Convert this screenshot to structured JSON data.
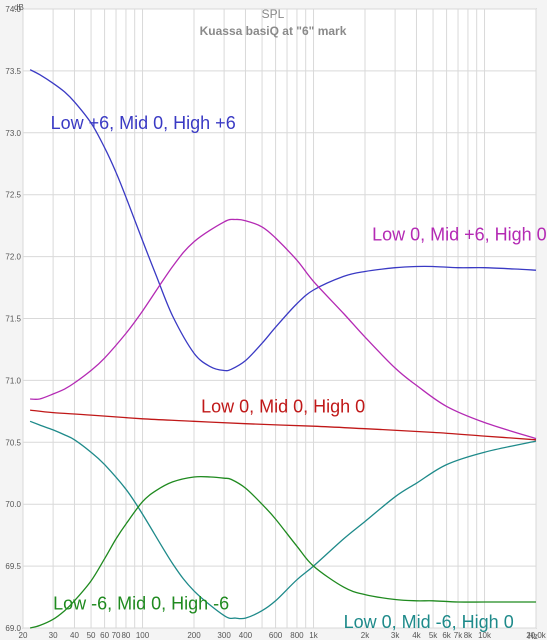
{
  "chart_data": {
    "type": "line",
    "title": "SPL",
    "subtitle": "Kuassa basiQ at \"6\" mark",
    "y_unit": "dB",
    "x_unit": "Hz",
    "x_scale": "log",
    "xlim": [
      20,
      20000
    ],
    "ylim": [
      69.0,
      74.0
    ],
    "grid": true,
    "y_ticks": [
      {
        "value": 69.0,
        "label": "69.0"
      },
      {
        "value": 69.5,
        "label": "69.5"
      },
      {
        "value": 70.0,
        "label": "70.0"
      },
      {
        "value": 70.5,
        "label": "70.5"
      },
      {
        "value": 71.0,
        "label": "71.0"
      },
      {
        "value": 71.5,
        "label": "71.5"
      },
      {
        "value": 72.0,
        "label": "72.0"
      },
      {
        "value": 72.5,
        "label": "72.5"
      },
      {
        "value": 73.0,
        "label": "73.0"
      },
      {
        "value": 73.5,
        "label": "73.5"
      },
      {
        "value": 74.0,
        "label": "74.0"
      }
    ],
    "x_ticks": [
      {
        "value": 20,
        "label": "20"
      },
      {
        "value": 30,
        "label": "30"
      },
      {
        "value": 40,
        "label": "40"
      },
      {
        "value": 50,
        "label": "50"
      },
      {
        "value": 60,
        "label": "60"
      },
      {
        "value": 70,
        "label": "70"
      },
      {
        "value": 80,
        "label": "80"
      },
      {
        "value": 100,
        "label": "100"
      },
      {
        "value": 200,
        "label": "200"
      },
      {
        "value": 300,
        "label": "300"
      },
      {
        "value": 400,
        "label": "400"
      },
      {
        "value": 600,
        "label": "600"
      },
      {
        "value": 800,
        "label": "800"
      },
      {
        "value": 1000,
        "label": "1k"
      },
      {
        "value": 2000,
        "label": "2k"
      },
      {
        "value": 3000,
        "label": "3k"
      },
      {
        "value": 4000,
        "label": "4k"
      },
      {
        "value": 5000,
        "label": "5k"
      },
      {
        "value": 6000,
        "label": "6k"
      },
      {
        "value": 7000,
        "label": "7k"
      },
      {
        "value": 8000,
        "label": "8k"
      },
      {
        "value": 10000,
        "label": "10k"
      },
      {
        "value": 20000,
        "label": "20.0k"
      }
    ],
    "series": [
      {
        "name": "Low +6, Mid 0, High +6",
        "color": "#3a3ac4",
        "x": [
          22,
          25,
          30,
          35,
          40,
          50,
          60,
          70,
          80,
          100,
          120,
          150,
          200,
          250,
          300,
          330,
          400,
          500,
          600,
          800,
          1000,
          1500,
          2000,
          3000,
          4000,
          5000,
          7000,
          10000,
          15000,
          20000
        ],
        "y": [
          73.51,
          73.47,
          73.4,
          73.33,
          73.25,
          73.08,
          72.88,
          72.68,
          72.48,
          72.13,
          71.85,
          71.52,
          71.22,
          71.11,
          71.08,
          71.09,
          71.16,
          71.3,
          71.43,
          71.62,
          71.73,
          71.84,
          71.88,
          71.91,
          71.92,
          71.92,
          71.91,
          71.91,
          71.9,
          71.89
        ]
      },
      {
        "name": "Low 0, Mid +6, High 0",
        "color": "#b42ab4",
        "x": [
          22,
          25,
          30,
          35,
          40,
          50,
          60,
          80,
          100,
          150,
          200,
          300,
          350,
          400,
          500,
          600,
          800,
          1000,
          1500,
          2000,
          3000,
          4000,
          6000,
          10000,
          20000
        ],
        "y": [
          70.85,
          70.85,
          70.89,
          70.93,
          70.98,
          71.08,
          71.18,
          71.38,
          71.56,
          71.92,
          72.12,
          72.28,
          72.3,
          72.29,
          72.24,
          72.15,
          71.97,
          71.8,
          71.54,
          71.35,
          71.1,
          70.96,
          70.79,
          70.66,
          70.53
        ]
      },
      {
        "name": "Low 0, Mid 0, High 0",
        "color": "#c01818",
        "x": [
          22,
          30,
          50,
          100,
          200,
          400,
          1000,
          2000,
          5000,
          10000,
          20000
        ],
        "y": [
          70.76,
          70.74,
          70.72,
          70.69,
          70.67,
          70.65,
          70.63,
          70.61,
          70.58,
          70.55,
          70.52
        ]
      },
      {
        "name": "Low 0, Mid -6, High 0",
        "color": "#1e8a8a",
        "x": [
          22,
          25,
          30,
          35,
          40,
          50,
          60,
          80,
          100,
          150,
          200,
          300,
          350,
          400,
          500,
          600,
          800,
          1000,
          1500,
          2000,
          3000,
          4000,
          6000,
          10000,
          20000
        ],
        "y": [
          70.67,
          70.64,
          70.6,
          70.56,
          70.52,
          70.42,
          70.32,
          70.12,
          69.92,
          69.52,
          69.3,
          69.1,
          69.08,
          69.08,
          69.14,
          69.22,
          69.39,
          69.5,
          69.72,
          69.86,
          70.06,
          70.17,
          70.32,
          70.42,
          70.51
        ]
      },
      {
        "name": "Low -6, Mid 0, High -6",
        "color": "#1f8a1f",
        "x": [
          22,
          25,
          30,
          35,
          40,
          50,
          60,
          70,
          80,
          100,
          120,
          150,
          200,
          250,
          300,
          330,
          400,
          500,
          600,
          800,
          1000,
          1500,
          2000,
          3000,
          4000,
          5000,
          7000,
          10000,
          15000,
          20000
        ],
        "y": [
          69.0,
          69.02,
          69.07,
          69.14,
          69.22,
          69.38,
          69.56,
          69.72,
          69.84,
          70.02,
          70.11,
          70.18,
          70.22,
          70.22,
          70.21,
          70.2,
          70.13,
          70.0,
          69.88,
          69.66,
          69.5,
          69.33,
          69.27,
          69.23,
          69.22,
          69.22,
          69.21,
          69.21,
          69.21,
          69.21
        ]
      }
    ],
    "annotations": [
      {
        "text": "Low +6, Mid 0, High +6",
        "color": "#3a3ac4",
        "x": 29,
        "y": 73.03
      },
      {
        "text": "Low 0, Mid +6, High 0",
        "color": "#b42ab4",
        "x": 2200,
        "y": 72.13
      },
      {
        "text": "Low 0, Mid 0, High 0",
        "color": "#c01818",
        "x": 220,
        "y": 70.74
      },
      {
        "text": "Low 0, Mid -6, High 0",
        "color": "#1e8a8a",
        "x": 1500,
        "y": 69.0
      },
      {
        "text": "Low -6, Mid 0, High -6",
        "color": "#1f8a1f",
        "x": 30,
        "y": 69.15
      }
    ]
  }
}
